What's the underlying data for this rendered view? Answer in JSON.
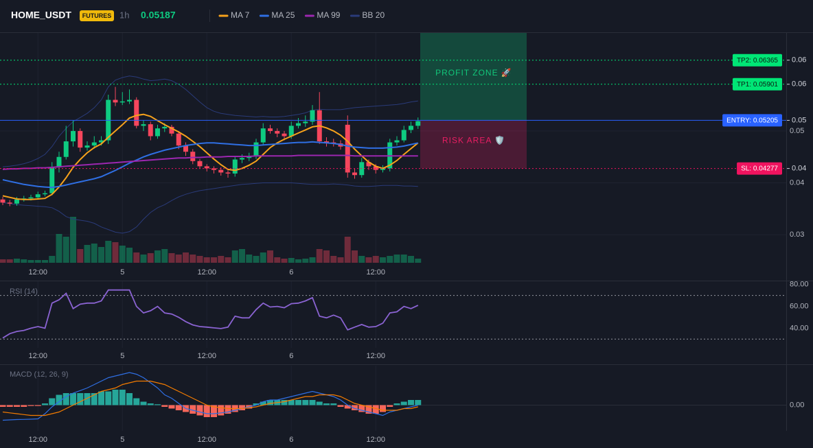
{
  "header": {
    "symbol": "HOME_USDT",
    "badge": "FUTURES",
    "interval": "1h",
    "price": 0.05187
  },
  "chart_data": [
    {
      "type": "candlestick",
      "categories": [
        null,
        null,
        null,
        null,
        null,
        "12:00",
        null,
        null,
        null,
        null,
        null,
        null,
        null,
        null,
        null,
        null,
        null,
        "5",
        null,
        null,
        null,
        null,
        null,
        null,
        null,
        null,
        null,
        null,
        null,
        "12:00",
        null,
        null,
        null,
        null,
        null,
        null,
        null,
        null,
        null,
        null,
        null,
        "6",
        null,
        null,
        null,
        null,
        null,
        null,
        null,
        null,
        null,
        null,
        null,
        "12:00",
        null,
        null,
        null,
        null,
        null,
        null
      ],
      "open": [
        0.0368,
        0.0362,
        0.036,
        0.0368,
        0.037,
        0.0372,
        0.0378,
        0.038,
        0.043,
        0.045,
        0.048,
        0.05,
        0.0468,
        0.0472,
        0.0478,
        0.0482,
        0.056,
        0.0555,
        0.0557,
        0.056,
        0.051,
        0.0513,
        0.049,
        0.0505,
        0.0508,
        0.0495,
        0.0472,
        0.046,
        0.0442,
        0.0432,
        0.0428,
        0.0425,
        0.042,
        0.0418,
        0.0445,
        0.0448,
        0.0452,
        0.0478,
        0.0505,
        0.05,
        0.0495,
        0.049,
        0.051,
        0.0515,
        0.0518,
        0.054,
        0.048,
        0.0478,
        0.0476,
        0.0512,
        0.042,
        0.0415,
        0.044,
        0.0432,
        0.0425,
        0.0428,
        0.0478,
        0.0482,
        0.0502,
        0.051
      ],
      "high": [
        0.0373,
        0.0367,
        0.0373,
        0.0375,
        0.0377,
        0.0383,
        0.0385,
        0.044,
        0.046,
        0.051,
        0.052,
        0.0505,
        0.048,
        0.049,
        0.049,
        0.057,
        0.0585,
        0.0575,
        0.058,
        0.0565,
        0.052,
        0.0518,
        0.0512,
        0.0515,
        0.0512,
        0.05,
        0.0478,
        0.0465,
        0.0446,
        0.0436,
        0.0432,
        0.043,
        0.0424,
        0.045,
        0.0455,
        0.0458,
        0.0485,
        0.0515,
        0.0512,
        0.0505,
        0.05,
        0.0518,
        0.0525,
        0.053,
        0.055,
        0.0575,
        0.0488,
        0.0485,
        0.0482,
        0.053,
        0.0428,
        0.0448,
        0.0445,
        0.0436,
        0.0434,
        0.0485,
        0.049,
        0.051,
        0.0518,
        0.0526
      ],
      "low": [
        0.0357,
        0.0355,
        0.0356,
        0.0364,
        0.0366,
        0.0368,
        0.0374,
        0.0376,
        0.042,
        0.0445,
        0.047,
        0.046,
        0.0462,
        0.0466,
        0.0472,
        0.0475,
        0.0548,
        0.055,
        0.0552,
        0.0505,
        0.05,
        0.0482,
        0.0485,
        0.0498,
        0.049,
        0.0465,
        0.0452,
        0.0436,
        0.0427,
        0.0422,
        0.0418,
        0.0414,
        0.041,
        0.0412,
        0.0438,
        0.0442,
        0.0446,
        0.0472,
        0.0495,
        0.0488,
        0.0482,
        0.0485,
        0.0505,
        0.0508,
        0.0512,
        0.0475,
        0.047,
        0.047,
        0.0464,
        0.041,
        0.0408,
        0.041,
        0.0425,
        0.0418,
        0.042,
        0.0422,
        0.0472,
        0.0478,
        0.0496,
        0.0504
      ],
      "close": [
        0.0362,
        0.036,
        0.0368,
        0.037,
        0.0372,
        0.0378,
        0.038,
        0.043,
        0.045,
        0.048,
        0.05,
        0.0468,
        0.0472,
        0.0478,
        0.0482,
        0.056,
        0.0555,
        0.0557,
        0.056,
        0.051,
        0.0513,
        0.049,
        0.0505,
        0.0508,
        0.0495,
        0.0472,
        0.046,
        0.0442,
        0.0432,
        0.0428,
        0.0425,
        0.042,
        0.0418,
        0.0445,
        0.0448,
        0.0452,
        0.0478,
        0.0505,
        0.05,
        0.0495,
        0.049,
        0.051,
        0.0515,
        0.0518,
        0.054,
        0.048,
        0.0478,
        0.0476,
        0.047,
        0.042,
        0.0415,
        0.044,
        0.0432,
        0.0425,
        0.0428,
        0.0478,
        0.0482,
        0.0502,
        0.051,
        0.0519
      ],
      "volume": [
        5,
        5,
        6,
        5,
        4,
        4,
        4,
        10,
        42,
        38,
        67,
        20,
        26,
        28,
        23,
        32,
        30,
        25,
        22,
        15,
        12,
        14,
        18,
        20,
        14,
        12,
        15,
        12,
        10,
        8,
        8,
        10,
        8,
        18,
        20,
        12,
        10,
        15,
        18,
        8,
        6,
        7,
        5,
        6,
        8,
        20,
        18,
        10,
        8,
        38,
        18,
        10,
        8,
        10,
        8,
        10,
        12,
        12,
        10,
        6
      ],
      "up_color": "#0ecb81",
      "down_color": "#f6465d",
      "series": [
        {
          "name": "MA 7",
          "color": "#f7a21b",
          "values": [
            0.0375,
            0.0372,
            0.0369,
            0.0368,
            0.0368,
            0.0369,
            0.037,
            0.0378,
            0.0392,
            0.041,
            0.043,
            0.0445,
            0.0458,
            0.0468,
            0.0475,
            0.0488,
            0.05,
            0.0512,
            0.0525,
            0.053,
            0.0532,
            0.0528,
            0.052,
            0.0512,
            0.0505,
            0.0498,
            0.049,
            0.048,
            0.047,
            0.0458,
            0.0446,
            0.0435,
            0.0426,
            0.0424,
            0.0428,
            0.0434,
            0.0442,
            0.0455,
            0.0468,
            0.0477,
            0.0484,
            0.049,
            0.0496,
            0.0502,
            0.0508,
            0.051,
            0.0506,
            0.05,
            0.0492,
            0.048,
            0.0465,
            0.0452,
            0.044,
            0.0432,
            0.0428,
            0.0434,
            0.0443,
            0.0455,
            0.0466,
            0.0477
          ]
        },
        {
          "name": "MA 25",
          "color": "#2f6fe4",
          "values": [
            0.0406,
            0.0403,
            0.04,
            0.0397,
            0.0395,
            0.0393,
            0.0392,
            0.0391,
            0.0393,
            0.0396,
            0.0399,
            0.0402,
            0.0405,
            0.0408,
            0.0412,
            0.0418,
            0.0424,
            0.0431,
            0.0438,
            0.0444,
            0.045,
            0.0455,
            0.0459,
            0.0463,
            0.0466,
            0.0469,
            0.0472,
            0.0474,
            0.0476,
            0.0477,
            0.0477,
            0.0476,
            0.0475,
            0.0474,
            0.0473,
            0.0472,
            0.0472,
            0.0473,
            0.0474,
            0.0475,
            0.0476,
            0.0477,
            0.0478,
            0.0478,
            0.0479,
            0.0478,
            0.0477,
            0.0476,
            0.0474,
            0.0471,
            0.0469,
            0.0468,
            0.0467,
            0.0467,
            0.0467,
            0.0468,
            0.0469,
            0.0471,
            0.0474,
            0.0477
          ]
        },
        {
          "name": "MA 99",
          "color": "#9c27b0",
          "values": [
            0.0426,
            0.0427,
            0.0427,
            0.0428,
            0.0428,
            0.0429,
            0.0429,
            0.043,
            0.0431,
            0.0432,
            0.0433,
            0.0434,
            0.0435,
            0.0436,
            0.0437,
            0.0438,
            0.0439,
            0.044,
            0.0441,
            0.0442,
            0.0443,
            0.0444,
            0.0445,
            0.0446,
            0.0447,
            0.0448,
            0.0448,
            0.0449,
            0.0449,
            0.045,
            0.045,
            0.045,
            0.0451,
            0.0451,
            0.0451,
            0.0451,
            0.0452,
            0.0452,
            0.0452,
            0.0452,
            0.0452,
            0.0452,
            0.0453,
            0.0453,
            0.0453,
            0.0453,
            0.0453,
            0.0453,
            0.0453,
            0.0453,
            0.0452,
            0.0452,
            0.0452,
            0.0452,
            0.0452,
            0.0452,
            0.0452,
            0.0452,
            0.0452,
            0.0452
          ]
        }
      ],
      "bands": {
        "name": "BB 20",
        "color": "#2a3b7a",
        "upper": [
          0.0431,
          0.0432,
          0.0434,
          0.0437,
          0.0441,
          0.0447,
          0.0455,
          0.047,
          0.049,
          0.0505,
          0.0518,
          0.0526,
          0.0534,
          0.0545,
          0.056,
          0.0585,
          0.0598,
          0.0603,
          0.0606,
          0.0604,
          0.06,
          0.0597,
          0.0598,
          0.06,
          0.0597,
          0.059,
          0.058,
          0.0568,
          0.0556,
          0.0545,
          0.0538,
          0.0534,
          0.0532,
          0.053,
          0.0529,
          0.0528,
          0.0527,
          0.0528,
          0.0527,
          0.0527,
          0.0528,
          0.053,
          0.0532,
          0.0535,
          0.054,
          0.0542,
          0.0541,
          0.0541,
          0.0541,
          0.0543,
          0.0545,
          0.0546,
          0.0547,
          0.0548,
          0.0549,
          0.055,
          0.0551,
          0.0553,
          0.0556,
          0.0558
        ],
        "lower": [
          0.0362,
          0.036,
          0.0358,
          0.0357,
          0.0356,
          0.0355,
          0.0354,
          0.0352,
          0.0345,
          0.0335,
          0.033,
          0.0328,
          0.0326,
          0.0322,
          0.0315,
          0.031,
          0.0305,
          0.0303,
          0.0306,
          0.0315,
          0.033,
          0.0343,
          0.0352,
          0.0358,
          0.0366,
          0.0373,
          0.0378,
          0.0382,
          0.0385,
          0.0387,
          0.0389,
          0.0391,
          0.0393,
          0.0395,
          0.0397,
          0.0398,
          0.0399,
          0.04,
          0.04,
          0.04,
          0.04,
          0.04,
          0.0399,
          0.0398,
          0.0397,
          0.0397,
          0.0397,
          0.0398,
          0.0397,
          0.0396,
          0.0394,
          0.0393,
          0.0393,
          0.0394,
          0.0395,
          0.0395,
          0.0395,
          0.0394,
          0.0394,
          0.0393
        ]
      },
      "ylim": [
        0.0246,
        0.0689
      ],
      "yticks": [
        0.03,
        0.04,
        0.05
      ],
      "grid": true,
      "levels": [
        {
          "label": "TP2: 0.06365",
          "value": 0.06365,
          "axis_label": "0.06",
          "color": "#00e676",
          "text_color": "#0b1a12",
          "line": "dotted"
        },
        {
          "label": "TP1: 0.05901",
          "value": 0.05901,
          "axis_label": "0.06",
          "color": "#00e676",
          "text_color": "#0b1a12",
          "line": "dotted"
        },
        {
          "label": "ENTRY: 0.05205",
          "value": 0.05205,
          "axis_label": "0.05",
          "color": "#2962ff",
          "text_color": "#ffffff",
          "line": "solid"
        },
        {
          "label": "SL: 0.04277",
          "value": 0.04277,
          "axis_label": "0.04",
          "color": "#f0135f",
          "text_color": "#ffffff",
          "line": "dotted"
        }
      ],
      "zones": [
        {
          "text": "PROFIT ZONE 🚀",
          "color": "#12c77a"
        },
        {
          "text": "RISK AREA 🛡️",
          "color": "#e91e63"
        }
      ]
    },
    {
      "type": "rsi",
      "title": "RSI (14)",
      "categories": [
        null,
        null,
        null,
        null,
        null,
        "12:00",
        null,
        null,
        null,
        null,
        null,
        null,
        null,
        null,
        null,
        null,
        null,
        "5",
        null,
        null,
        null,
        null,
        null,
        null,
        null,
        null,
        null,
        null,
        null,
        "12:00",
        null,
        null,
        null,
        null,
        null,
        null,
        null,
        null,
        null,
        null,
        null,
        "6",
        null,
        null,
        null,
        null,
        null,
        null,
        null,
        null,
        null,
        null,
        null,
        "12:00",
        null,
        null,
        null,
        null,
        null,
        null
      ],
      "values": [
        31,
        35,
        37,
        38,
        40,
        41.5,
        40,
        63,
        66,
        72,
        58,
        62,
        63,
        63,
        65,
        75,
        75,
        75,
        75,
        60,
        54,
        56,
        60,
        54,
        53,
        50,
        46,
        43,
        41.5,
        41,
        40.3,
        39.7,
        41,
        51,
        49.5,
        49.5,
        57,
        63,
        59.4,
        60,
        58.8,
        62.5,
        63,
        65,
        68,
        51,
        49.5,
        52,
        49.5,
        38.5,
        41,
        43.4,
        41,
        41.5,
        44.6,
        54,
        55,
        60,
        58,
        61
      ],
      "color": "#8a63d2",
      "levels": [
        70,
        30
      ],
      "ylim": [
        22,
        83
      ],
      "yticks": [
        {
          "value": 80,
          "label": "80.00"
        },
        {
          "value": 60,
          "label": "60.00"
        },
        {
          "value": 40,
          "label": "40.00"
        }
      ]
    },
    {
      "type": "macd",
      "title": "MACD (12, 26, 9)",
      "categories": [
        null,
        null,
        null,
        null,
        null,
        "12:00",
        null,
        null,
        null,
        null,
        null,
        null,
        null,
        null,
        null,
        null,
        null,
        "5",
        null,
        null,
        null,
        null,
        null,
        null,
        null,
        null,
        null,
        null,
        null,
        "12:00",
        null,
        null,
        null,
        null,
        null,
        null,
        null,
        null,
        null,
        null,
        null,
        "6",
        null,
        null,
        null,
        null,
        null,
        null,
        null,
        null,
        null,
        null,
        null,
        "12:00",
        null,
        null,
        null,
        null,
        null,
        null
      ],
      "macd": {
        "color": "#2f6fe4",
        "values": [
          -0.00088,
          -0.00086,
          -0.00084,
          -0.00083,
          -0.00082,
          -0.0008,
          -0.0005,
          -0.0001,
          0.0002,
          0.0005,
          0.0007,
          0.00085,
          0.001,
          0.0012,
          0.0014,
          0.0016,
          0.0017,
          0.0018,
          0.0019,
          0.0018,
          0.0016,
          0.0013,
          0.001,
          0.0006,
          0.0004,
          0.0001,
          -0.0002,
          -0.0003,
          -0.0004,
          -0.0005,
          -0.0005,
          -0.00045,
          -0.0004,
          -0.0003,
          -0.0002,
          -0.0001,
          0,
          0.0002,
          0.0003,
          0.0003,
          0.0004,
          0.0005,
          0.0006,
          0.0007,
          0.0008,
          0.0007,
          0.0006,
          0.0005,
          0.0003,
          0,
          -0.0002,
          -0.0003,
          -0.0004,
          -0.0005,
          -0.0006,
          -0.0004,
          -0.0003,
          -0.0002,
          -0.0001,
          0
        ]
      },
      "signal": {
        "color": "#f57c00",
        "values": [
          -0.0004,
          -0.00045,
          -0.0005,
          -0.00055,
          -0.0006,
          -0.0006,
          -0.0006,
          -0.0005,
          -0.0004,
          -0.0002,
          0,
          0.0002,
          0.0004,
          0.0006,
          0.0008,
          0.0009,
          0.001,
          0.0012,
          0.0013,
          0.0014,
          0.0014,
          0.0014,
          0.0013,
          0.0012,
          0.001,
          0.0008,
          0.0006,
          0.0004,
          0.0002,
          0,
          -0.0001,
          -0.00015,
          -0.0002,
          -0.0002,
          -0.0002,
          -0.00015,
          -0.0001,
          0,
          0.0001,
          0.00015,
          0.0002,
          0.0003,
          0.0004,
          0.0005,
          0.0005,
          0.0006,
          0.0006,
          0.0006,
          0.0005,
          0.0003,
          0.0001,
          0,
          -0.0001,
          -0.0002,
          -0.0003,
          -0.0003,
          -0.0003,
          -0.0002,
          -0.0002,
          -0.0001
        ]
      },
      "histogram": {
        "positive_color": "#26a69a",
        "negative_color": "#f7665a",
        "values": [
          -0.0001,
          -0.0001,
          -0.0001,
          -0.0001,
          -5e-05,
          -5e-05,
          0.0001,
          0.0004,
          0.0006,
          0.0007,
          0.0007,
          0.0007,
          0.0007,
          0.0007,
          0.0008,
          0.0008,
          0.0009,
          0.0009,
          0.0007,
          0.0004,
          0.0002,
          0.0001,
          5e-05,
          -0.0001,
          -0.0002,
          -0.0003,
          -0.0004,
          -0.0005,
          -0.0006,
          -0.0007,
          -0.0007,
          -0.0006,
          -0.0005,
          -0.0004,
          -0.0003,
          -0.0002,
          0.0001,
          0.0002,
          0.0003,
          0.0003,
          0.0003,
          0.0003,
          0.0003,
          0.0003,
          0.0003,
          0.0002,
          0.0001,
          0.0001,
          -0.0001,
          -0.0002,
          -0.0003,
          -0.0004,
          -0.0005,
          -0.0005,
          -0.0004,
          -0.0001,
          0.0001,
          0.0002,
          0.0003,
          0.0003
        ]
      },
      "ylim": [
        -0.0015,
        0.0023
      ],
      "yticks": [
        {
          "value": 0,
          "label": "0.00"
        }
      ]
    }
  ]
}
